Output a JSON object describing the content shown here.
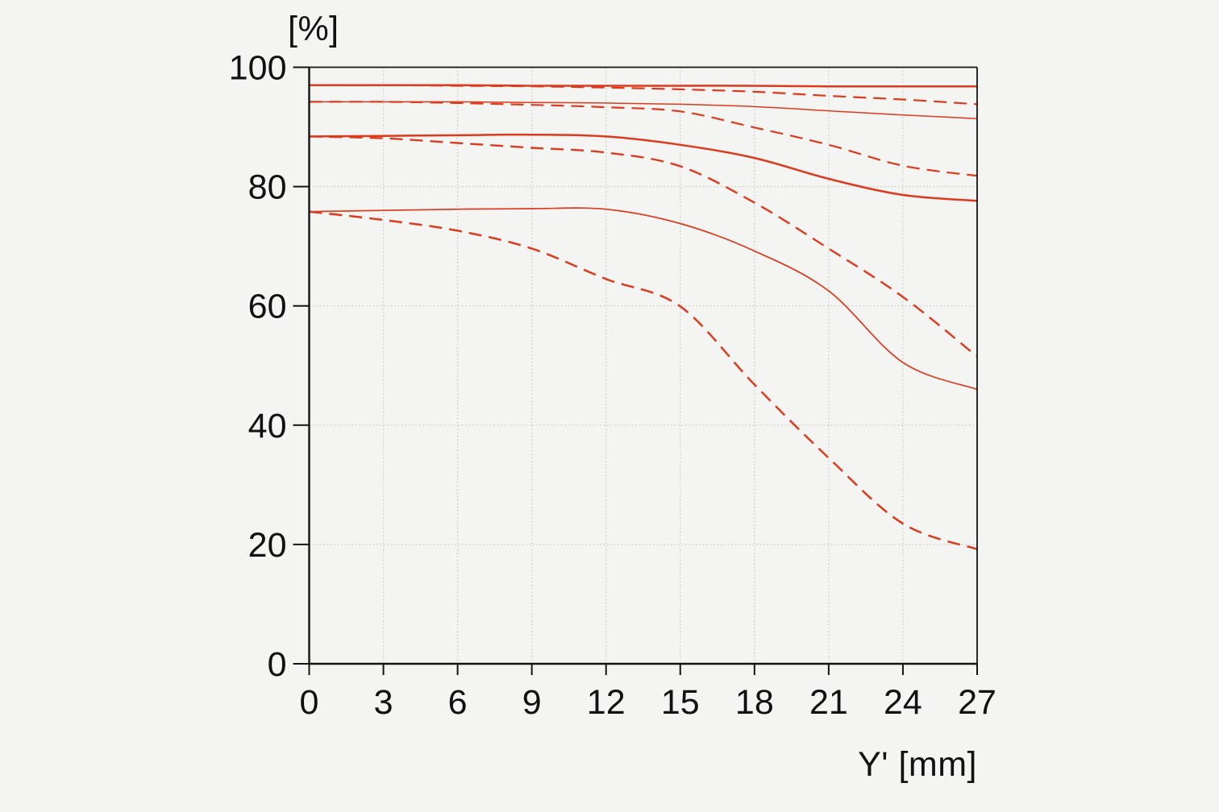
{
  "page": {
    "background": "#f4f4f2"
  },
  "chart_data": {
    "type": "line",
    "title": "",
    "xlabel": "Y' [mm]",
    "ylabel": "[%]",
    "x": [
      0,
      3,
      6,
      9,
      12,
      15,
      18,
      21,
      24,
      27
    ],
    "xlim": [
      0,
      27
    ],
    "ylim": [
      0,
      100
    ],
    "x_ticks": [
      0,
      3,
      6,
      9,
      12,
      15,
      18,
      21,
      24,
      27
    ],
    "x_tick_labels": [
      "0",
      "3",
      "6",
      "9",
      "12",
      "15",
      "18",
      "21",
      "24",
      "27"
    ],
    "y_ticks": [
      0,
      20,
      40,
      60,
      80,
      100
    ],
    "y_tick_labels": [
      "0",
      "20",
      "40",
      "60",
      "80",
      "100"
    ],
    "x_gridlines": [
      3,
      6,
      9,
      12,
      15,
      18,
      21,
      24
    ],
    "y_gridlines": [
      20,
      40,
      60,
      80
    ],
    "grid": "dotted",
    "legend_position": "none",
    "line_color": "#dd3a1d",
    "axis_color": "#141414",
    "grid_color": "#c6c6c2",
    "text_color": "#111111",
    "series": [
      {
        "name": "curve-1-solid",
        "style": "solid",
        "width": 2.5,
        "values": [
          97.0,
          97.0,
          97.0,
          96.9,
          96.9,
          96.9,
          96.9,
          96.8,
          96.8,
          96.8
        ]
      },
      {
        "name": "curve-1-dashed",
        "style": "dashed",
        "width": 2.2,
        "values": [
          97.0,
          97.0,
          96.9,
          96.8,
          96.6,
          96.3,
          95.9,
          95.2,
          94.6,
          93.8
        ]
      },
      {
        "name": "curve-2-solid",
        "style": "solid",
        "width": 1.5,
        "values": [
          94.2,
          94.2,
          94.2,
          94.1,
          94.0,
          93.8,
          93.4,
          92.7,
          92.0,
          91.4
        ]
      },
      {
        "name": "curve-2-dashed",
        "style": "dashed",
        "width": 2.2,
        "values": [
          94.2,
          94.2,
          94.0,
          93.7,
          93.3,
          92.6,
          89.9,
          87.0,
          83.5,
          81.8
        ]
      },
      {
        "name": "curve-3-solid",
        "style": "solid",
        "width": 2.5,
        "values": [
          88.4,
          88.5,
          88.6,
          88.7,
          88.4,
          87.0,
          84.8,
          81.3,
          78.6,
          77.6
        ]
      },
      {
        "name": "curve-3-dashed",
        "style": "dashed",
        "width": 2.4,
        "values": [
          88.4,
          88.1,
          87.3,
          86.5,
          85.7,
          83.4,
          77.3,
          69.6,
          61.5,
          51.5
        ]
      },
      {
        "name": "curve-4-solid",
        "style": "solid",
        "width": 1.7,
        "values": [
          75.8,
          76.0,
          76.2,
          76.3,
          76.2,
          73.8,
          69.2,
          62.5,
          50.5,
          46.0
        ]
      },
      {
        "name": "curve-4-dashed",
        "style": "dashed",
        "width": 2.5,
        "values": [
          75.8,
          74.4,
          72.6,
          69.6,
          64.5,
          59.9,
          46.8,
          34.5,
          23.5,
          19.2
        ]
      }
    ]
  }
}
